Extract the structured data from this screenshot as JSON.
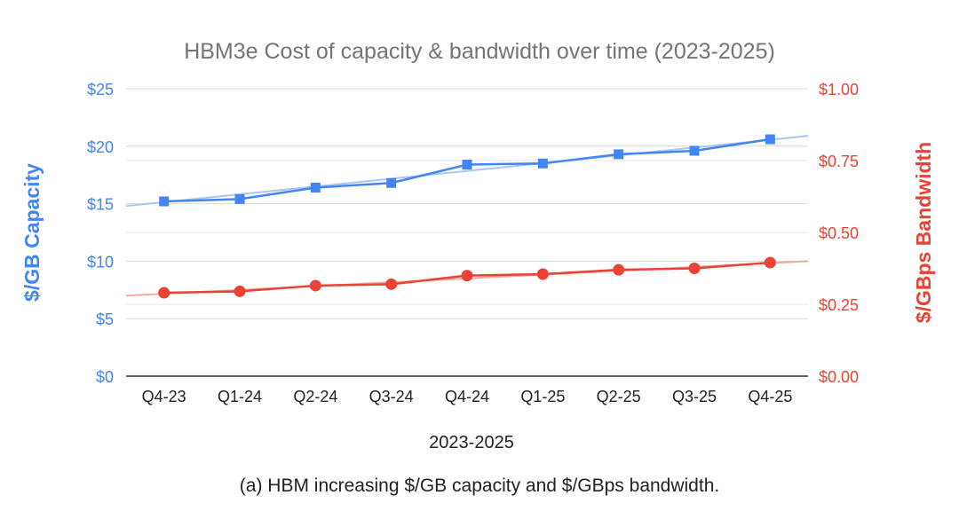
{
  "chart_data": {
    "type": "line",
    "title": "HBM3e Cost of capacity & bandwidth over time (2023-2025)",
    "xlabel": "2023-2025",
    "categories": [
      "Q4-23",
      "Q1-24",
      "Q2-24",
      "Q3-24",
      "Q4-24",
      "Q1-25",
      "Q2-25",
      "Q3-25",
      "Q4-25"
    ],
    "y_left": {
      "label": "$/GB Capacity",
      "range": [
        0,
        25
      ],
      "ticks": [
        0,
        5,
        10,
        15,
        20,
        25
      ],
      "tick_labels": [
        "$0",
        "$5",
        "$10",
        "$15",
        "$20",
        "$25"
      ],
      "color": "#4285f4"
    },
    "y_right": {
      "label": "$/GBps Bandwidth",
      "range": [
        0,
        1.0
      ],
      "ticks": [
        0,
        0.25,
        0.5,
        0.75,
        1.0
      ],
      "tick_labels": [
        "$0.00",
        "$0.25",
        "$0.50",
        "$0.75",
        "$1.00"
      ],
      "color": "#ea4335"
    },
    "series": [
      {
        "name": "$/GB Capacity",
        "axis": "left",
        "marker": "square",
        "color": "#4285f4",
        "trendline_color": "#a8c7f5",
        "values": [
          15.2,
          15.4,
          16.4,
          16.8,
          18.4,
          18.5,
          19.3,
          19.6,
          20.6
        ],
        "trendline": [
          14.8,
          20.9
        ]
      },
      {
        "name": "$/GBps Bandwidth",
        "axis": "right",
        "marker": "circle",
        "color": "#ea4335",
        "trendline_color": "#f4a9a2",
        "values": [
          0.29,
          0.295,
          0.315,
          0.32,
          0.35,
          0.355,
          0.37,
          0.375,
          0.395
        ],
        "trendline": [
          0.28,
          0.4
        ]
      }
    ],
    "grid": true,
    "legend": "none"
  },
  "caption": "(a) HBM increasing $/GB capacity and $/GBps bandwidth."
}
